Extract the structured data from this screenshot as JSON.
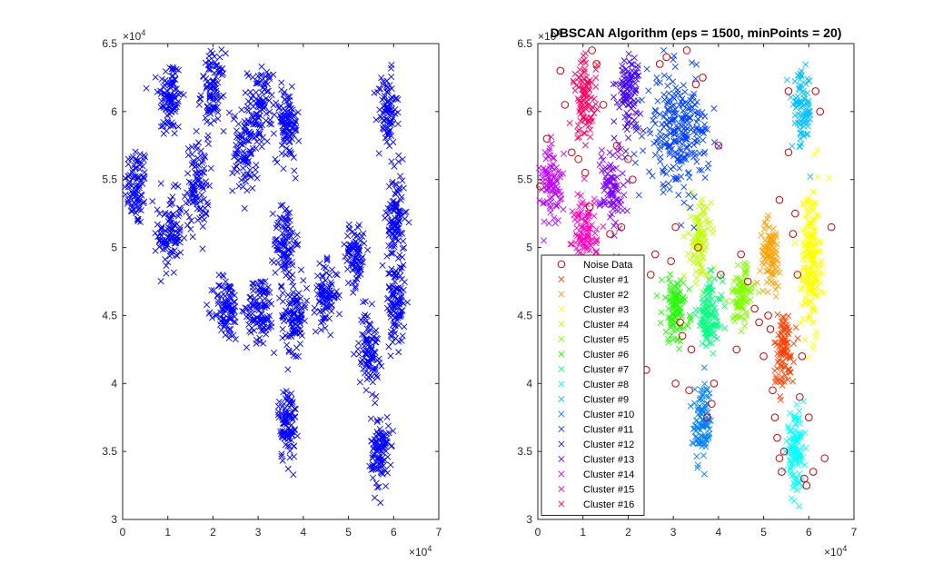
{
  "chart_data": [
    {
      "type": "scatter",
      "title": "",
      "xlabel": "",
      "ylabel": "",
      "xlim": [
        0,
        70000
      ],
      "ylim": [
        30000,
        65000
      ],
      "xticks": [
        "0",
        "1",
        "2",
        "3",
        "4",
        "5",
        "6",
        "7"
      ],
      "yticks": [
        "3",
        "3.5",
        "4",
        "4.5",
        "5",
        "5.5",
        "6",
        "6.5"
      ],
      "x_exponent": "×10",
      "x_exponent_power": "4",
      "y_exponent": "×10",
      "y_exponent_power": "4",
      "marker": "x",
      "color": "#0000ff",
      "clusters": [
        {
          "cx": 3000,
          "cy": 54500,
          "sx": 1300,
          "sy": 1500,
          "n": 90
        },
        {
          "cx": 10500,
          "cy": 61000,
          "sx": 1300,
          "sy": 1500,
          "n": 100
        },
        {
          "cx": 10500,
          "cy": 51000,
          "sx": 1300,
          "sy": 1500,
          "n": 100
        },
        {
          "cx": 16500,
          "cy": 54500,
          "sx": 1300,
          "sy": 1600,
          "n": 100
        },
        {
          "cx": 20000,
          "cy": 61500,
          "sx": 1300,
          "sy": 1400,
          "n": 100
        },
        {
          "cx": 27000,
          "cy": 57000,
          "sx": 1300,
          "sy": 1500,
          "n": 90
        },
        {
          "cx": 30500,
          "cy": 60500,
          "sx": 1400,
          "sy": 1400,
          "n": 100
        },
        {
          "cx": 36500,
          "cy": 59000,
          "sx": 1300,
          "sy": 1300,
          "n": 100
        },
        {
          "cx": 58500,
          "cy": 60000,
          "sx": 1100,
          "sy": 1400,
          "n": 90
        },
        {
          "cx": 36000,
          "cy": 50500,
          "sx": 1200,
          "sy": 1500,
          "n": 100
        },
        {
          "cx": 23000,
          "cy": 45500,
          "sx": 1400,
          "sy": 1200,
          "n": 100
        },
        {
          "cx": 30500,
          "cy": 45500,
          "sx": 1500,
          "sy": 1200,
          "n": 110
        },
        {
          "cx": 38000,
          "cy": 45000,
          "sx": 1400,
          "sy": 1300,
          "n": 110
        },
        {
          "cx": 45000,
          "cy": 46500,
          "sx": 1300,
          "sy": 1100,
          "n": 90
        },
        {
          "cx": 51500,
          "cy": 49500,
          "sx": 1100,
          "sy": 1200,
          "n": 90
        },
        {
          "cx": 60500,
          "cy": 52000,
          "sx": 1000,
          "sy": 1800,
          "n": 110
        },
        {
          "cx": 60500,
          "cy": 46000,
          "sx": 1000,
          "sy": 1500,
          "n": 100
        },
        {
          "cx": 54500,
          "cy": 42500,
          "sx": 1100,
          "sy": 1400,
          "n": 100
        },
        {
          "cx": 36500,
          "cy": 37000,
          "sx": 1000,
          "sy": 1400,
          "n": 100
        },
        {
          "cx": 57000,
          "cy": 35000,
          "sx": 1000,
          "sy": 1300,
          "n": 110
        }
      ]
    },
    {
      "type": "scatter",
      "title": "DBSCAN Algorithm (eps = 1500, minPoints = 20)",
      "xlabel": "",
      "ylabel": "",
      "xlim": [
        0,
        70000
      ],
      "ylim": [
        30000,
        65000
      ],
      "xticks": [
        "0",
        "1",
        "2",
        "3",
        "4",
        "5",
        "6",
        "7"
      ],
      "yticks": [
        "3",
        "3.5",
        "4",
        "4.5",
        "5",
        "5.5",
        "6",
        "6.5"
      ],
      "x_exponent": "×10",
      "x_exponent_power": "4",
      "y_exponent": "×10",
      "y_exponent_power": "4",
      "legend": {
        "placement": "bottom-left",
        "entries": [
          {
            "label": "Noise Data",
            "marker": "o",
            "color": "#cc0000"
          },
          {
            "label": "Cluster #1",
            "marker": "x",
            "color": "#ff4000"
          },
          {
            "label": "Cluster #2",
            "marker": "x",
            "color": "#ffa000"
          },
          {
            "label": "Cluster #3",
            "marker": "x",
            "color": "#ffff00"
          },
          {
            "label": "Cluster #4",
            "marker": "x",
            "color": "#c0ff00"
          },
          {
            "label": "Cluster #5",
            "marker": "x",
            "color": "#80ff00"
          },
          {
            "label": "Cluster #6",
            "marker": "x",
            "color": "#20ff00"
          },
          {
            "label": "Cluster #7",
            "marker": "x",
            "color": "#00ff80"
          },
          {
            "label": "Cluster #8",
            "marker": "x",
            "color": "#00ffff"
          },
          {
            "label": "Cluster #9",
            "marker": "x",
            "color": "#00c0ff"
          },
          {
            "label": "Cluster #10",
            "marker": "x",
            "color": "#0080ff"
          },
          {
            "label": "Cluster #11",
            "marker": "x",
            "color": "#0040ff"
          },
          {
            "label": "Cluster #12",
            "marker": "x",
            "color": "#4000ff"
          },
          {
            "label": "Cluster #13",
            "marker": "x",
            "color": "#8000ff"
          },
          {
            "label": "Cluster #14",
            "marker": "x",
            "color": "#c000ff"
          },
          {
            "label": "Cluster #15",
            "marker": "x",
            "color": "#ff00c0"
          },
          {
            "label": "Cluster #16",
            "marker": "x",
            "color": "#ff0060"
          }
        ]
      },
      "clusters": [
        {
          "label": "Cluster #1",
          "color": "#ff4000",
          "cx": 54500,
          "cy": 42500,
          "sx": 1100,
          "sy": 1400,
          "n": 100
        },
        {
          "label": "Cluster #2",
          "color": "#ffa000",
          "cx": 51500,
          "cy": 49500,
          "sx": 1100,
          "sy": 1200,
          "n": 90
        },
        {
          "label": "Cluster #3",
          "color": "#ffff00",
          "cx": 60500,
          "cy": 49000,
          "sx": 1100,
          "sy": 2800,
          "n": 200
        },
        {
          "label": "Cluster #4",
          "color": "#c0ff00",
          "cx": 36000,
          "cy": 50500,
          "sx": 1200,
          "sy": 1500,
          "n": 100
        },
        {
          "label": "Cluster #5",
          "color": "#80ff00",
          "cx": 45000,
          "cy": 46500,
          "sx": 1300,
          "sy": 1100,
          "n": 90
        },
        {
          "label": "Cluster #6",
          "color": "#20ff00",
          "cx": 30500,
          "cy": 45500,
          "sx": 1500,
          "sy": 1200,
          "n": 100
        },
        {
          "label": "Cluster #7",
          "color": "#00ff80",
          "cx": 38000,
          "cy": 45000,
          "sx": 1400,
          "sy": 1300,
          "n": 110
        },
        {
          "label": "Cluster #8",
          "color": "#00ffff",
          "cx": 57000,
          "cy": 35000,
          "sx": 1000,
          "sy": 1300,
          "n": 110
        },
        {
          "label": "Cluster #9",
          "color": "#00c0ff",
          "cx": 58500,
          "cy": 60000,
          "sx": 1100,
          "sy": 1400,
          "n": 90
        },
        {
          "label": "Cluster #10",
          "color": "#0080ff",
          "cx": 36500,
          "cy": 37000,
          "sx": 1000,
          "sy": 1400,
          "n": 100
        },
        {
          "label": "Cluster #11",
          "color": "#0040ff",
          "cx": 31000,
          "cy": 58500,
          "sx": 3500,
          "sy": 2000,
          "n": 260
        },
        {
          "label": "Cluster #12",
          "color": "#4000ff",
          "cx": 20000,
          "cy": 61500,
          "sx": 1300,
          "sy": 1400,
          "n": 100
        },
        {
          "label": "Cluster #13",
          "color": "#8000ff",
          "cx": 16500,
          "cy": 54500,
          "sx": 1300,
          "sy": 1600,
          "n": 90
        },
        {
          "label": "Cluster #14",
          "color": "#c000ff",
          "cx": 3000,
          "cy": 54500,
          "sx": 1300,
          "sy": 1500,
          "n": 90
        },
        {
          "label": "Cluster #15",
          "color": "#ff00c0",
          "cx": 10500,
          "cy": 51000,
          "sx": 1300,
          "sy": 1500,
          "n": 100
        },
        {
          "label": "Cluster #16",
          "color": "#ff0060",
          "cx": 10500,
          "cy": 61000,
          "sx": 1300,
          "sy": 1500,
          "n": 100
        }
      ],
      "noise": [
        [
          500,
          54500
        ],
        [
          2000,
          58000
        ],
        [
          5000,
          63000
        ],
        [
          6000,
          60500
        ],
        [
          7500,
          57000
        ],
        [
          9000,
          56500
        ],
        [
          10500,
          55500
        ],
        [
          11500,
          53000
        ],
        [
          12000,
          64500
        ],
        [
          13000,
          63500
        ],
        [
          14500,
          60500
        ],
        [
          16000,
          51000
        ],
        [
          17500,
          57500
        ],
        [
          18500,
          51500
        ],
        [
          20000,
          56500
        ],
        [
          21000,
          55000
        ],
        [
          21500,
          48500
        ],
        [
          22500,
          44000
        ],
        [
          24000,
          41000
        ],
        [
          25000,
          48000
        ],
        [
          26000,
          49500
        ],
        [
          27000,
          63500
        ],
        [
          28500,
          64000
        ],
        [
          29500,
          49000
        ],
        [
          30500,
          51500
        ],
        [
          30500,
          40000
        ],
        [
          31500,
          44500
        ],
        [
          32000,
          43500
        ],
        [
          33000,
          64500
        ],
        [
          33500,
          39500
        ],
        [
          34000,
          42500
        ],
        [
          35000,
          62000
        ],
        [
          35500,
          50000
        ],
        [
          36500,
          62500
        ],
        [
          37500,
          37500
        ],
        [
          38500,
          38500
        ],
        [
          39000,
          40000
        ],
        [
          40000,
          57500
        ],
        [
          40500,
          48000
        ],
        [
          44000,
          42500
        ],
        [
          45000,
          49500
        ],
        [
          46500,
          47500
        ],
        [
          48000,
          45500
        ],
        [
          49000,
          44500
        ],
        [
          50000,
          42000
        ],
        [
          51000,
          45000
        ],
        [
          51500,
          44000
        ],
        [
          52000,
          39500
        ],
        [
          52500,
          37500
        ],
        [
          53000,
          36000
        ],
        [
          53500,
          53500
        ],
        [
          53500,
          34500
        ],
        [
          54000,
          33500
        ],
        [
          54500,
          35000
        ],
        [
          55500,
          57000
        ],
        [
          55500,
          61500
        ],
        [
          56500,
          51000
        ],
        [
          57000,
          52500
        ],
        [
          57500,
          48000
        ],
        [
          58000,
          39000
        ],
        [
          58500,
          42000
        ],
        [
          59000,
          33000
        ],
        [
          59500,
          32500
        ],
        [
          60000,
          37500
        ],
        [
          61000,
          33500
        ],
        [
          61500,
          61500
        ],
        [
          62500,
          60000
        ],
        [
          63500,
          34500
        ],
        [
          65000,
          51500
        ]
      ]
    }
  ]
}
